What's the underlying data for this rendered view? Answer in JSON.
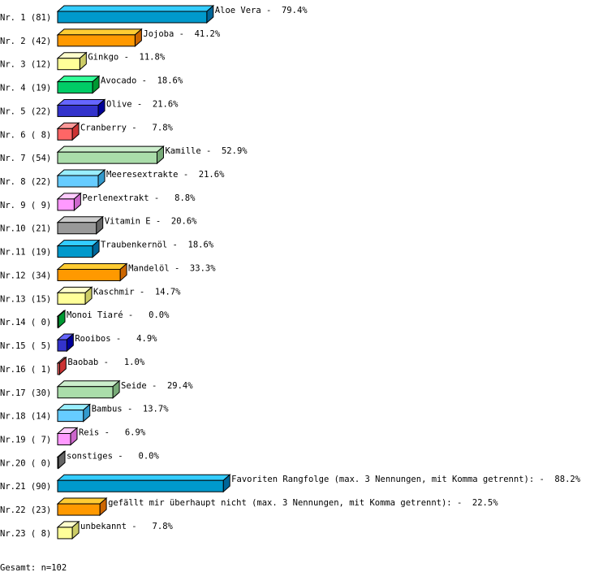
{
  "chart_data": {
    "type": "bar",
    "orientation": "horizontal",
    "style": "3d",
    "xlim": [
      0,
      100
    ],
    "unit": "%",
    "rows": [
      {
        "nr": "Nr. 1 (81)",
        "name": "Aloe Vera",
        "count": 81,
        "percent": 79.4,
        "value_label": "79.4%"
      },
      {
        "nr": "Nr. 2 (42)",
        "name": "Jojoba",
        "count": 42,
        "percent": 41.2,
        "value_label": "41.2%"
      },
      {
        "nr": "Nr. 3 (12)",
        "name": "Ginkgo",
        "count": 12,
        "percent": 11.8,
        "value_label": "11.8%"
      },
      {
        "nr": "Nr. 4 (19)",
        "name": "Avocado",
        "count": 19,
        "percent": 18.6,
        "value_label": "18.6%"
      },
      {
        "nr": "Nr. 5 (22)",
        "name": "Olive",
        "count": 22,
        "percent": 21.6,
        "value_label": "21.6%"
      },
      {
        "nr": "Nr. 6 ( 8)",
        "name": "Cranberry",
        "count": 8,
        "percent": 7.8,
        "value_label": " 7.8%"
      },
      {
        "nr": "Nr. 7 (54)",
        "name": "Kamille",
        "count": 54,
        "percent": 52.9,
        "value_label": "52.9%"
      },
      {
        "nr": "Nr. 8 (22)",
        "name": "Meeresextrakte",
        "count": 22,
        "percent": 21.6,
        "value_label": "21.6%"
      },
      {
        "nr": "Nr. 9 ( 9)",
        "name": "Perlenextrakt",
        "count": 9,
        "percent": 8.8,
        "value_label": " 8.8%"
      },
      {
        "nr": "Nr.10 (21)",
        "name": "Vitamin E",
        "count": 21,
        "percent": 20.6,
        "value_label": "20.6%"
      },
      {
        "nr": "Nr.11 (19)",
        "name": "Traubenkernöl",
        "count": 19,
        "percent": 18.6,
        "value_label": "18.6%"
      },
      {
        "nr": "Nr.12 (34)",
        "name": "Mandelöl",
        "count": 34,
        "percent": 33.3,
        "value_label": "33.3%"
      },
      {
        "nr": "Nr.13 (15)",
        "name": "Kaschmir",
        "count": 15,
        "percent": 14.7,
        "value_label": "14.7%"
      },
      {
        "nr": "Nr.14 ( 0)",
        "name": "Monoi Tiaré",
        "count": 0,
        "percent": 0.0,
        "value_label": " 0.0%"
      },
      {
        "nr": "Nr.15 ( 5)",
        "name": "Rooibos",
        "count": 5,
        "percent": 4.9,
        "value_label": " 4.9%"
      },
      {
        "nr": "Nr.16 ( 1)",
        "name": "Baobab",
        "count": 1,
        "percent": 1.0,
        "value_label": " 1.0%"
      },
      {
        "nr": "Nr.17 (30)",
        "name": "Seide",
        "count": 30,
        "percent": 29.4,
        "value_label": "29.4%"
      },
      {
        "nr": "Nr.18 (14)",
        "name": "Bambus",
        "count": 14,
        "percent": 13.7,
        "value_label": "13.7%"
      },
      {
        "nr": "Nr.19 ( 7)",
        "name": "Reis",
        "count": 7,
        "percent": 6.9,
        "value_label": " 6.9%"
      },
      {
        "nr": "Nr.20 ( 0)",
        "name": "sonstiges",
        "count": 0,
        "percent": 0.0,
        "value_label": " 0.0%"
      },
      {
        "nr": "Nr.21 (90)",
        "name": "Favoriten Rangfolge (max. 3 Nennungen, mit Komma getrennt):",
        "count": 90,
        "percent": 88.2,
        "value_label": "88.2%"
      },
      {
        "nr": "Nr.22 (23)",
        "name": "gefällt mir überhaupt nicht (max. 3 Nennungen, mit Komma getrennt):",
        "count": 23,
        "percent": 22.5,
        "value_label": "22.5%"
      },
      {
        "nr": "Nr.23 ( 8)",
        "name": "unbekannt",
        "count": 8,
        "percent": 7.8,
        "value_label": " 7.8%"
      }
    ],
    "palette": [
      {
        "front": "#0099cc",
        "top": "#33ccff",
        "side": "#006699"
      },
      {
        "front": "#ff9900",
        "top": "#ffcc33",
        "side": "#cc6600"
      },
      {
        "front": "#ffff99",
        "top": "#ffffcc",
        "side": "#cccc66"
      },
      {
        "front": "#00cc66",
        "top": "#33ff99",
        "side": "#009933"
      },
      {
        "front": "#3333cc",
        "top": "#6666ff",
        "side": "#000099"
      },
      {
        "front": "#ff6666",
        "top": "#ff9999",
        "side": "#cc3333"
      },
      {
        "front": "#aaddaa",
        "top": "#cceecc",
        "side": "#77aa77"
      },
      {
        "front": "#66ccff",
        "top": "#99eeff",
        "side": "#3399cc"
      },
      {
        "front": "#ff99ff",
        "top": "#ffccff",
        "side": "#cc66cc"
      },
      {
        "front": "#999999",
        "top": "#cccccc",
        "side": "#666666"
      }
    ],
    "separator": " - ",
    "footer": "Gesamt: n=102"
  }
}
